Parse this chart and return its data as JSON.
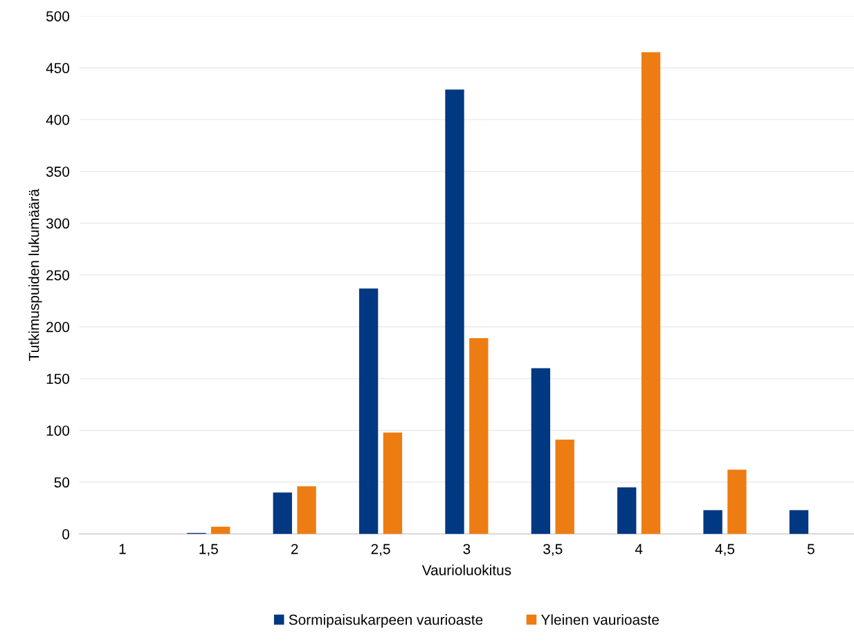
{
  "chart_data": {
    "type": "bar",
    "xlabel": "Vaurioluokitus",
    "ylabel": "Tutkimuspuiden lukumäärä",
    "categories": [
      "1",
      "1,5",
      "2",
      "2,5",
      "3",
      "3,5",
      "4",
      "4,5",
      "5"
    ],
    "series": [
      {
        "name": "Sormipaisukarpeen vaurioaste",
        "color": "#003882",
        "values": [
          0,
          1,
          40,
          237,
          429,
          160,
          45,
          23,
          23
        ]
      },
      {
        "name": "Yleinen vaurioaste",
        "color": "#ed7d12",
        "values": [
          0,
          7,
          46,
          98,
          189,
          91,
          465,
          62,
          0
        ]
      }
    ],
    "ylim": [
      0,
      500
    ],
    "yticks": [
      0,
      50,
      100,
      150,
      200,
      250,
      300,
      350,
      400,
      450,
      500
    ],
    "grid": "y",
    "legend": "bottom"
  }
}
